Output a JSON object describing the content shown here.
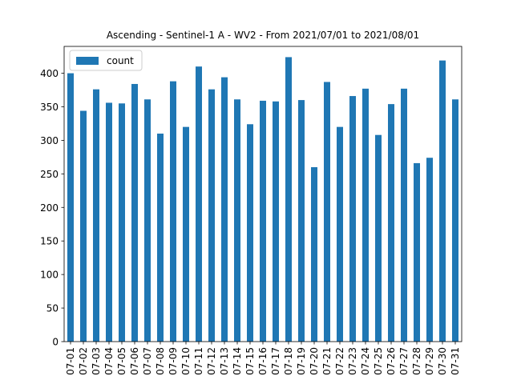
{
  "chart_data": {
    "type": "bar",
    "title": "Ascending - Sentinel-1 A - WV2 - From 2021/07/01 to 2021/08/01",
    "xlabel": "",
    "ylabel": "",
    "categories": [
      "07-01",
      "07-02",
      "07-03",
      "07-04",
      "07-05",
      "07-06",
      "07-07",
      "07-08",
      "07-09",
      "07-10",
      "07-11",
      "07-12",
      "07-13",
      "07-14",
      "07-15",
      "07-16",
      "07-17",
      "07-18",
      "07-19",
      "07-20",
      "07-21",
      "07-22",
      "07-23",
      "07-24",
      "07-25",
      "07-26",
      "07-27",
      "07-28",
      "07-29",
      "07-30",
      "07-31"
    ],
    "series": [
      {
        "name": "count",
        "color": "#1f77b4",
        "values": [
          400,
          344,
          376,
          356,
          355,
          384,
          361,
          310,
          388,
          320,
          410,
          376,
          394,
          361,
          324,
          359,
          358,
          424,
          360,
          260,
          387,
          320,
          366,
          377,
          308,
          354,
          377,
          266,
          274,
          419,
          361
        ]
      }
    ],
    "ylim": [
      0,
      440
    ],
    "yticks": [
      0,
      50,
      100,
      150,
      200,
      250,
      300,
      350,
      400
    ],
    "grid": false,
    "legend_position": "upper-left"
  }
}
